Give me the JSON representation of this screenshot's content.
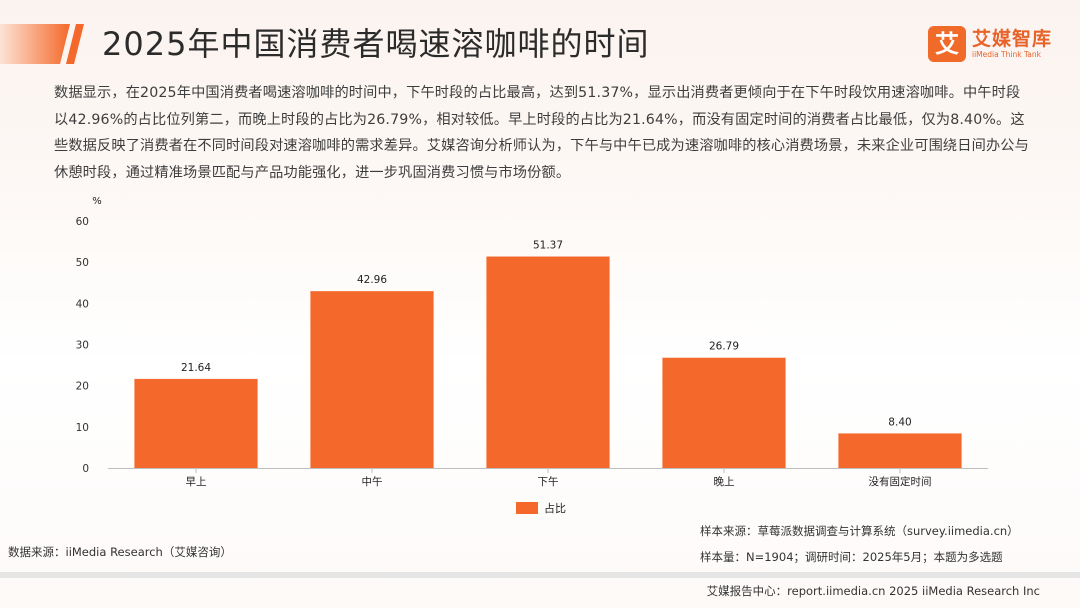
{
  "header": {
    "title": "2025年中国消费者喝速溶咖啡的时间",
    "brand_mark": "艾",
    "brand_name": "艾媒智库",
    "brand_sub": "iiMedia Think Tank"
  },
  "intro": "数据显示，在2025年中国消费者喝速溶咖啡的时间中，下午时段的占比最高，达到51.37%，显示出消费者更倾向于在下午时段饮用速溶咖啡。中午时段以42.96%的占比位列第二，而晚上时段的占比为26.79%，相对较低。早上时段的占比为21.64%，而没有固定时间的消费者占比最低，仅为8.40%。这些数据反映了消费者在不同时间段对速溶咖啡的需求差异。艾媒咨询分析师认为，下午与中午已成为速溶咖啡的核心消费场景，未来企业可围绕日间办公与休憩时段，通过精准场景匹配与产品功能强化，进一步巩固消费习惯与市场份额。",
  "chart_data": {
    "type": "bar",
    "categories": [
      "早上",
      "中午",
      "下午",
      "晚上",
      "没有固定时间"
    ],
    "series": [
      {
        "name": "占比",
        "values": [
          21.64,
          42.96,
          51.37,
          26.79,
          8.4
        ],
        "value_labels": [
          "21.64",
          "42.96",
          "51.37",
          "26.79",
          "8.40"
        ],
        "color": "#f4692b"
      }
    ],
    "y_unit": "%",
    "ylim": [
      0,
      60
    ],
    "yticks": [
      0,
      10,
      20,
      30,
      40,
      50,
      60
    ],
    "grid": false,
    "legend_position": "bottom-center"
  },
  "notes": {
    "data_source": "数据来源：iiMedia Research（艾媒咨询）",
    "sample_source": "样本来源：草莓派数据调查与计算系统（survey.iimedia.cn）",
    "sample_size": "样本量：N=1904；调研时间：2025年5月；本题为多选题"
  },
  "footer": {
    "text": "艾媒报告中心：report.iimedia.cn  2025 iiMedia Research Inc"
  }
}
